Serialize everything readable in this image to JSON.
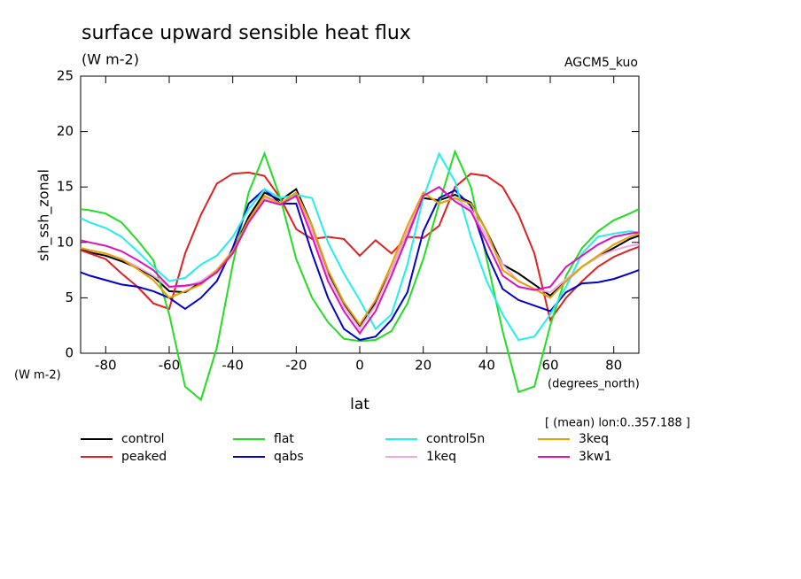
{
  "chart_data": {
    "type": "line",
    "title": "surface upward sensible heat flux",
    "y_units": "(W m-2)",
    "tag": "AGCM5_kuo",
    "ylabel": "sh_ssh_zonal",
    "xlabel": "lat",
    "x_units": "(degrees_north)",
    "note": "[ (mean) lon:0..357.188 ]",
    "x": [
      -87.9,
      -85,
      -80,
      -75,
      -70,
      -65,
      -60,
      -55,
      -50,
      -45,
      -40,
      -35,
      -30,
      -25,
      -20,
      -15,
      -10,
      -5,
      0,
      5,
      10,
      15,
      20,
      25,
      30,
      35,
      40,
      45,
      50,
      55,
      60,
      65,
      70,
      75,
      80,
      85,
      87.9
    ],
    "xlim": [
      -87.9,
      87.9
    ],
    "xticks": [
      -80,
      -60,
      -40,
      -20,
      0,
      20,
      40,
      60,
      80
    ],
    "ylim": [
      0,
      25
    ],
    "yticks": [
      0,
      5,
      10,
      15,
      20,
      25
    ],
    "series": [
      {
        "name": "control",
        "color": "#000000",
        "values": [
          9.4,
          9.1,
          8.8,
          8.3,
          7.7,
          6.9,
          5.6,
          5.5,
          6.4,
          7.5,
          9.2,
          12.3,
          14.5,
          13.8,
          14.8,
          11.5,
          7.2,
          4.5,
          2.5,
          4.6,
          7.5,
          11,
          14,
          13.8,
          14.3,
          13.6,
          11,
          8,
          7.2,
          6.2,
          5.2,
          6.5,
          7.8,
          8.7,
          9.5,
          10.3,
          10.6
        ]
      },
      {
        "name": "peaked",
        "color": "#e02020",
        "values": [
          9.3,
          9,
          8.5,
          7.2,
          6,
          4.5,
          4,
          9,
          12.5,
          15.3,
          16.2,
          16.3,
          16,
          14,
          11.2,
          10.3,
          10.5,
          10.3,
          8.8,
          10.2,
          9,
          10.5,
          10.4,
          11.5,
          15,
          16.2,
          16,
          15,
          12.5,
          9,
          3,
          5,
          6.5,
          7.8,
          8.7,
          9.3,
          9.6
        ]
      },
      {
        "name": "flat",
        "color": "#22dd22",
        "values": [
          13,
          12.9,
          12.6,
          11.8,
          10.2,
          8.4,
          3.5,
          -3,
          -4.2,
          0.5,
          8,
          14.5,
          18,
          14,
          8.5,
          5,
          2.8,
          1.3,
          1.1,
          1.2,
          2,
          4.5,
          8.5,
          13.5,
          18.2,
          15,
          8.5,
          2,
          -3.5,
          -3,
          2.5,
          7,
          9.5,
          11,
          12,
          12.6,
          13
        ]
      },
      {
        "name": "qabs",
        "color": "#0000cc",
        "values": [
          7.3,
          7,
          6.6,
          6.2,
          6,
          5.6,
          5,
          4,
          5,
          6.5,
          9.5,
          13.5,
          14.8,
          13.5,
          13.5,
          9,
          5,
          2.2,
          1.2,
          1.5,
          3,
          5.5,
          11,
          14,
          14.7,
          13.3,
          9,
          5.8,
          4.8,
          4.3,
          3.8,
          5.5,
          6.3,
          6.4,
          6.7,
          7.2,
          7.5
        ]
      },
      {
        "name": "control5n",
        "color": "#22eeee",
        "values": [
          12.2,
          11.8,
          11.3,
          10.5,
          9.2,
          7.8,
          6.5,
          6.8,
          8,
          8.8,
          10.5,
          13,
          14.8,
          14,
          14.3,
          14,
          10,
          7.2,
          4.8,
          2.2,
          3.5,
          8,
          14,
          18,
          15.5,
          10.5,
          6.5,
          3.5,
          1.2,
          1.5,
          3.5,
          6,
          9,
          10.5,
          10.8,
          11,
          10.9
        ]
      },
      {
        "name": "1keq",
        "color": "#eeaadd",
        "values": [
          9.5,
          9.3,
          9,
          8.5,
          7.8,
          7,
          6,
          6,
          6.5,
          7.5,
          9.2,
          12,
          14,
          13.5,
          14.5,
          11,
          7,
          4.2,
          2.2,
          4.3,
          7.5,
          11,
          14.5,
          13.5,
          14,
          13,
          10.5,
          8,
          6.5,
          5.8,
          5.5,
          6.7,
          7.8,
          8.7,
          9.3,
          9.7,
          9.8
        ]
      },
      {
        "name": "3keq",
        "color": "#e8a000",
        "values": [
          9.5,
          9.3,
          9,
          8.5,
          7.6,
          6.6,
          5,
          5.6,
          6.2,
          7.5,
          9.2,
          12,
          14.2,
          13.5,
          14.5,
          11.5,
          7.5,
          4.6,
          2.6,
          4.8,
          8,
          11.5,
          14.5,
          13.5,
          14,
          13.5,
          11,
          7.5,
          6.5,
          5.8,
          5,
          6.5,
          7.8,
          8.8,
          9.8,
          10.5,
          10.8
        ]
      },
      {
        "name": "3kw1",
        "color": "#dd11bb",
        "values": [
          10.2,
          10,
          9.7,
          9.2,
          8.4,
          7.5,
          6,
          6.1,
          6.3,
          7.3,
          9,
          11.8,
          13.8,
          13.4,
          14.2,
          10.5,
          6.5,
          3.8,
          1.8,
          3.8,
          7,
          10.5,
          14.2,
          15,
          13.7,
          12.8,
          10,
          7,
          6,
          5.7,
          6,
          7.8,
          8.8,
          9.8,
          10.5,
          10.8,
          10.9
        ]
      }
    ]
  }
}
